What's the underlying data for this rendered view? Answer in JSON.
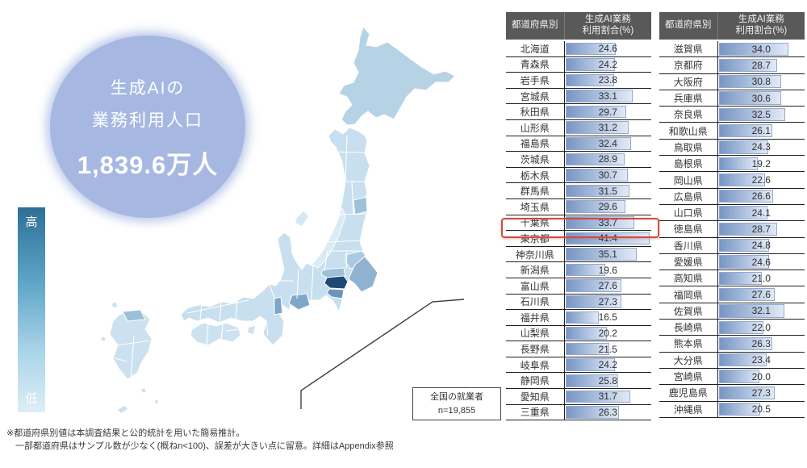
{
  "hero": {
    "line1": "生成AIの",
    "line2": "業務利用人口",
    "value": "1,839.6万人"
  },
  "legend": {
    "high": "高",
    "low": "低"
  },
  "callout": {
    "line1": "全国の就業者",
    "line2": "n=19,855"
  },
  "table_header": {
    "pref": "都道府県別",
    "value": "生成AI業務\n利用割合(%)"
  },
  "tables": {
    "bar_scale_max": 42.5,
    "highlighted_pref": "東京都",
    "left": [
      {
        "pref": "北海道",
        "value": "24.6"
      },
      {
        "pref": "青森県",
        "value": "24.2"
      },
      {
        "pref": "岩手県",
        "value": "23.8"
      },
      {
        "pref": "宮城県",
        "value": "33.1"
      },
      {
        "pref": "秋田県",
        "value": "29.7"
      },
      {
        "pref": "山形県",
        "value": "31.2"
      },
      {
        "pref": "福島県",
        "value": "32.4"
      },
      {
        "pref": "茨城県",
        "value": "28.9"
      },
      {
        "pref": "栃木県",
        "value": "30.7"
      },
      {
        "pref": "群馬県",
        "value": "31.5"
      },
      {
        "pref": "埼玉県",
        "value": "29.6"
      },
      {
        "pref": "千葉県",
        "value": "33.7"
      },
      {
        "pref": "東京都",
        "value": "41.4",
        "highlight": true
      },
      {
        "pref": "神奈川県",
        "value": "35.1"
      },
      {
        "pref": "新潟県",
        "value": "19.6"
      },
      {
        "pref": "富山県",
        "value": "27.6"
      },
      {
        "pref": "石川県",
        "value": "27.3"
      },
      {
        "pref": "福井県",
        "value": "16.5"
      },
      {
        "pref": "山梨県",
        "value": "20.2"
      },
      {
        "pref": "長野県",
        "value": "21.5"
      },
      {
        "pref": "岐阜県",
        "value": "24.2"
      },
      {
        "pref": "静岡県",
        "value": "25.8"
      },
      {
        "pref": "愛知県",
        "value": "31.7"
      },
      {
        "pref": "三重県",
        "value": "26.3"
      }
    ],
    "right": [
      {
        "pref": "滋賀県",
        "value": "34.0"
      },
      {
        "pref": "京都府",
        "value": "28.7"
      },
      {
        "pref": "大阪府",
        "value": "30.8"
      },
      {
        "pref": "兵庫県",
        "value": "30.6"
      },
      {
        "pref": "奈良県",
        "value": "32.5"
      },
      {
        "pref": "和歌山県",
        "value": "26.1"
      },
      {
        "pref": "鳥取県",
        "value": "24.3"
      },
      {
        "pref": "島根県",
        "value": "19.2"
      },
      {
        "pref": "岡山県",
        "value": "22.6"
      },
      {
        "pref": "広島県",
        "value": "26.6"
      },
      {
        "pref": "山口県",
        "value": "24.1"
      },
      {
        "pref": "徳島県",
        "value": "28.7"
      },
      {
        "pref": "香川県",
        "value": "24.8"
      },
      {
        "pref": "愛媛県",
        "value": "24.6"
      },
      {
        "pref": "高知県",
        "value": "21.0"
      },
      {
        "pref": "福岡県",
        "value": "27.6"
      },
      {
        "pref": "佐賀県",
        "value": "32.1"
      },
      {
        "pref": "長崎県",
        "value": "22.0"
      },
      {
        "pref": "熊本県",
        "value": "26.3"
      },
      {
        "pref": "大分県",
        "value": "23.4"
      },
      {
        "pref": "宮崎県",
        "value": "20.0"
      },
      {
        "pref": "鹿児島県",
        "value": "27.3"
      },
      {
        "pref": "沖縄県",
        "value": "20.5"
      }
    ]
  },
  "footnote": {
    "line1": "※都道府県別値は本調査結果と公的統計を用いた簡易推計。",
    "line2": "一部都道府県はサンプル数が少なく(概ねn<100)、誤差が大きい点に留意。詳細はAppendix参照"
  },
  "colors": {
    "circle": "#a6b8e2",
    "header_bg": "#595959",
    "bar_start": "#7796c3",
    "bar_end": "#e2eaf5",
    "bar_border": "#93a9d1",
    "highlight_red": "#d04a43",
    "legend_top": "#2e6f96",
    "legend_bottom": "#ddeef7",
    "map_base": "#c7dfee",
    "map_tokyo": "#1c4a74"
  },
  "chart_data": {
    "type": "table",
    "title": "生成AIの業務利用人口 1,839.6万人",
    "subtitle": "都道府県別 生成AI業務利用割合(%) — 日本地図choropleth(高→低)付き",
    "columns": [
      "都道府県別",
      "生成AI業務利用割合(%)"
    ],
    "rows": [
      [
        "北海道",
        24.6
      ],
      [
        "青森県",
        24.2
      ],
      [
        "岩手県",
        23.8
      ],
      [
        "宮城県",
        33.1
      ],
      [
        "秋田県",
        29.7
      ],
      [
        "山形県",
        31.2
      ],
      [
        "福島県",
        32.4
      ],
      [
        "茨城県",
        28.9
      ],
      [
        "栃木県",
        30.7
      ],
      [
        "群馬県",
        31.5
      ],
      [
        "埼玉県",
        29.6
      ],
      [
        "千葉県",
        33.7
      ],
      [
        "東京都",
        41.4
      ],
      [
        "神奈川県",
        35.1
      ],
      [
        "新潟県",
        19.6
      ],
      [
        "富山県",
        27.6
      ],
      [
        "石川県",
        27.3
      ],
      [
        "福井県",
        16.5
      ],
      [
        "山梨県",
        20.2
      ],
      [
        "長野県",
        21.5
      ],
      [
        "岐阜県",
        24.2
      ],
      [
        "静岡県",
        25.8
      ],
      [
        "愛知県",
        31.7
      ],
      [
        "三重県",
        26.3
      ],
      [
        "滋賀県",
        34.0
      ],
      [
        "京都府",
        28.7
      ],
      [
        "大阪府",
        30.8
      ],
      [
        "兵庫県",
        30.6
      ],
      [
        "奈良県",
        32.5
      ],
      [
        "和歌山県",
        26.1
      ],
      [
        "鳥取県",
        24.3
      ],
      [
        "島根県",
        19.2
      ],
      [
        "岡山県",
        22.6
      ],
      [
        "広島県",
        26.6
      ],
      [
        "山口県",
        24.1
      ],
      [
        "徳島県",
        28.7
      ],
      [
        "香川県",
        24.8
      ],
      [
        "愛媛県",
        24.6
      ],
      [
        "高知県",
        21.0
      ],
      [
        "福岡県",
        27.6
      ],
      [
        "佐賀県",
        32.1
      ],
      [
        "長崎県",
        22.0
      ],
      [
        "熊本県",
        26.3
      ],
      [
        "大分県",
        23.4
      ],
      [
        "宮崎県",
        20.0
      ],
      [
        "鹿児島県",
        27.3
      ],
      [
        "沖縄県",
        20.5
      ]
    ],
    "highlighted_row": "東京都",
    "value_range_shown": [
      16.5,
      41.4
    ],
    "annotations": [
      "全国の就業者 n=19,855",
      "生成AIの業務利用人口 1,839.6万人"
    ]
  }
}
